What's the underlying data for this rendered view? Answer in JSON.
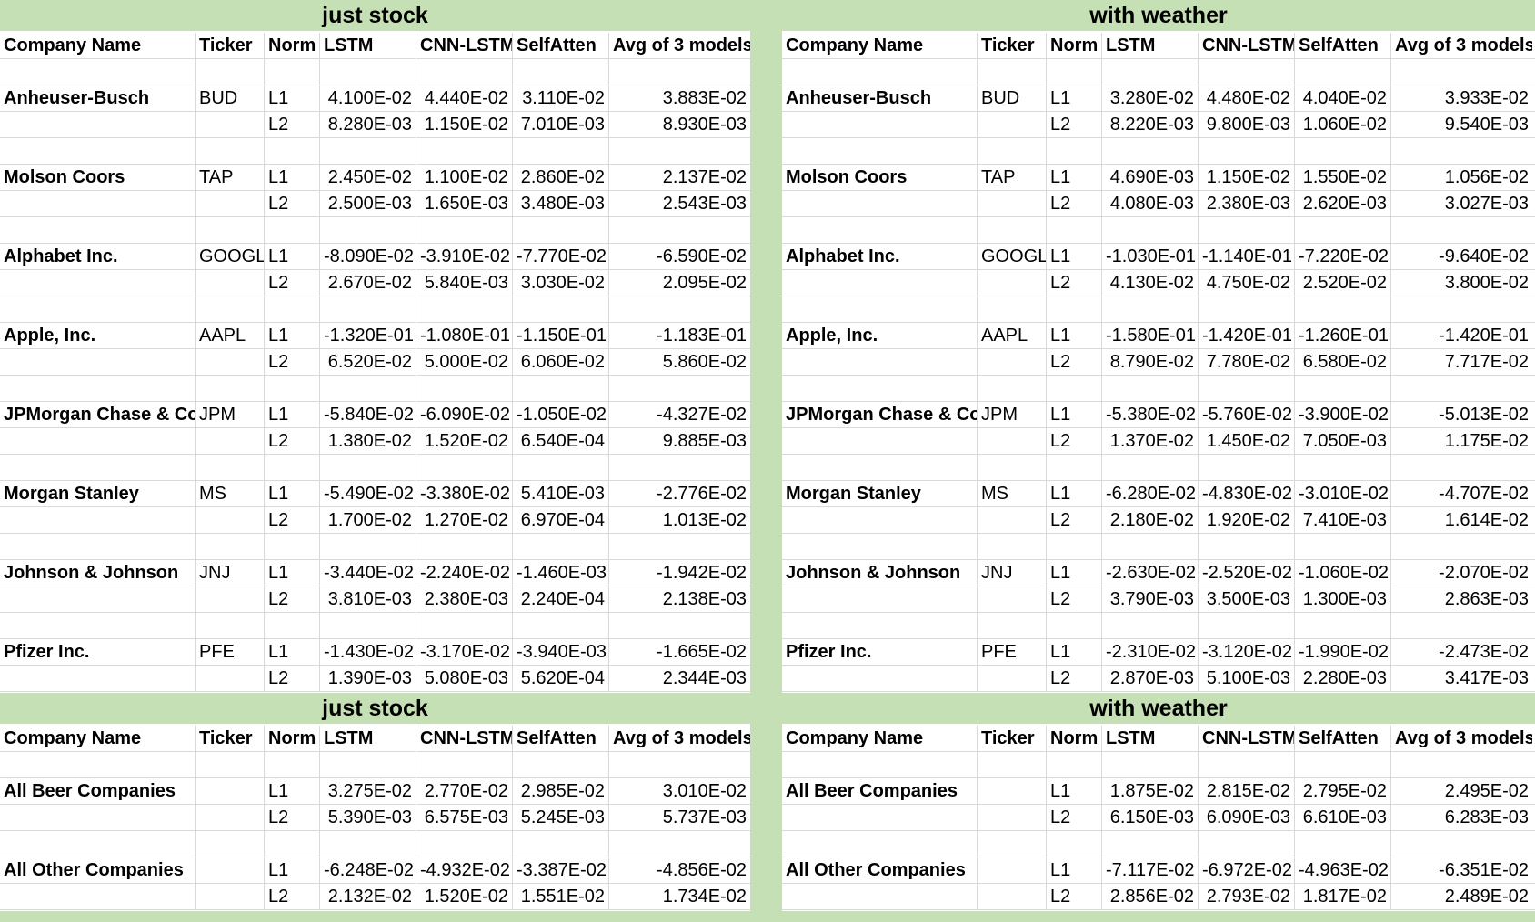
{
  "headers": [
    "Company Name",
    "Ticker",
    "Norm",
    "LSTM",
    "CNN-LSTM",
    "SelfAtten",
    "Avg of 3 models"
  ],
  "panels": [
    {
      "title": "just stock",
      "blocks": [
        {
          "name": "Anheuser-Busch",
          "ticker": "BUD",
          "rows": [
            {
              "norm": "L1",
              "lstm": "4.100E-02",
              "cnn": "4.440E-02",
              "self": "3.110E-02",
              "avg": "3.883E-02"
            },
            {
              "norm": "L2",
              "lstm": "8.280E-03",
              "cnn": "1.150E-02",
              "self": "7.010E-03",
              "avg": "8.930E-03"
            }
          ]
        },
        {
          "name": "Molson Coors",
          "ticker": "TAP",
          "rows": [
            {
              "norm": "L1",
              "lstm": "2.450E-02",
              "cnn": "1.100E-02",
              "self": "2.860E-02",
              "avg": "2.137E-02"
            },
            {
              "norm": "L2",
              "lstm": "2.500E-03",
              "cnn": "1.650E-03",
              "self": "3.480E-03",
              "avg": "2.543E-03"
            }
          ]
        },
        {
          "name": "Alphabet Inc.",
          "ticker": "GOOGL",
          "rows": [
            {
              "norm": "L1",
              "lstm": "-8.090E-02",
              "cnn": "-3.910E-02",
              "self": "-7.770E-02",
              "avg": "-6.590E-02"
            },
            {
              "norm": "L2",
              "lstm": "2.670E-02",
              "cnn": "5.840E-03",
              "self": "3.030E-02",
              "avg": "2.095E-02"
            }
          ]
        },
        {
          "name": "Apple, Inc.",
          "ticker": "AAPL",
          "rows": [
            {
              "norm": "L1",
              "lstm": "-1.320E-01",
              "cnn": "-1.080E-01",
              "self": "-1.150E-01",
              "avg": "-1.183E-01"
            },
            {
              "norm": "L2",
              "lstm": "6.520E-02",
              "cnn": "5.000E-02",
              "self": "6.060E-02",
              "avg": "5.860E-02"
            }
          ]
        },
        {
          "name": "JPMorgan Chase & Co.",
          "ticker": "JPM",
          "rows": [
            {
              "norm": "L1",
              "lstm": "-5.840E-02",
              "cnn": "-6.090E-02",
              "self": "-1.050E-02",
              "avg": "-4.327E-02"
            },
            {
              "norm": "L2",
              "lstm": "1.380E-02",
              "cnn": "1.520E-02",
              "self": "6.540E-04",
              "avg": "9.885E-03"
            }
          ]
        },
        {
          "name": "Morgan Stanley",
          "ticker": "MS",
          "rows": [
            {
              "norm": "L1",
              "lstm": "-5.490E-02",
              "cnn": "-3.380E-02",
              "self": "5.410E-03",
              "avg": "-2.776E-02"
            },
            {
              "norm": "L2",
              "lstm": "1.700E-02",
              "cnn": "1.270E-02",
              "self": "6.970E-04",
              "avg": "1.013E-02"
            }
          ]
        },
        {
          "name": "Johnson & Johnson",
          "ticker": "JNJ",
          "rows": [
            {
              "norm": "L1",
              "lstm": "-3.440E-02",
              "cnn": "-2.240E-02",
              "self": "-1.460E-03",
              "avg": "-1.942E-02"
            },
            {
              "norm": "L2",
              "lstm": "3.810E-03",
              "cnn": "2.380E-03",
              "self": "2.240E-04",
              "avg": "2.138E-03"
            }
          ]
        },
        {
          "name": "Pfizer Inc.",
          "ticker": "PFE",
          "rows": [
            {
              "norm": "L1",
              "lstm": "-1.430E-02",
              "cnn": "-3.170E-02",
              "self": "-3.940E-03",
              "avg": "-1.665E-02"
            },
            {
              "norm": "L2",
              "lstm": "1.390E-03",
              "cnn": "5.080E-03",
              "self": "5.620E-04",
              "avg": "2.344E-03"
            }
          ]
        }
      ]
    },
    {
      "title": "with weather",
      "blocks": [
        {
          "name": "Anheuser-Busch",
          "ticker": "BUD",
          "rows": [
            {
              "norm": "L1",
              "lstm": "3.280E-02",
              "cnn": "4.480E-02",
              "self": "4.040E-02",
              "avg": "3.933E-02"
            },
            {
              "norm": "L2",
              "lstm": "8.220E-03",
              "cnn": "9.800E-03",
              "self": "1.060E-02",
              "avg": "9.540E-03"
            }
          ]
        },
        {
          "name": "Molson Coors",
          "ticker": "TAP",
          "rows": [
            {
              "norm": "L1",
              "lstm": "4.690E-03",
              "cnn": "1.150E-02",
              "self": "1.550E-02",
              "avg": "1.056E-02"
            },
            {
              "norm": "L2",
              "lstm": "4.080E-03",
              "cnn": "2.380E-03",
              "self": "2.620E-03",
              "avg": "3.027E-03"
            }
          ]
        },
        {
          "name": "Alphabet Inc.",
          "ticker": "GOOGL",
          "rows": [
            {
              "norm": "L1",
              "lstm": "-1.030E-01",
              "cnn": "-1.140E-01",
              "self": "-7.220E-02",
              "avg": "-9.640E-02"
            },
            {
              "norm": "L2",
              "lstm": "4.130E-02",
              "cnn": "4.750E-02",
              "self": "2.520E-02",
              "avg": "3.800E-02"
            }
          ]
        },
        {
          "name": "Apple, Inc.",
          "ticker": "AAPL",
          "rows": [
            {
              "norm": "L1",
              "lstm": "-1.580E-01",
              "cnn": "-1.420E-01",
              "self": "-1.260E-01",
              "avg": "-1.420E-01"
            },
            {
              "norm": "L2",
              "lstm": "8.790E-02",
              "cnn": "7.780E-02",
              "self": "6.580E-02",
              "avg": "7.717E-02"
            }
          ]
        },
        {
          "name": "JPMorgan Chase & Co.",
          "ticker": "JPM",
          "rows": [
            {
              "norm": "L1",
              "lstm": "-5.380E-02",
              "cnn": "-5.760E-02",
              "self": "-3.900E-02",
              "avg": "-5.013E-02"
            },
            {
              "norm": "L2",
              "lstm": "1.370E-02",
              "cnn": "1.450E-02",
              "self": "7.050E-03",
              "avg": "1.175E-02"
            }
          ]
        },
        {
          "name": "Morgan Stanley",
          "ticker": "MS",
          "rows": [
            {
              "norm": "L1",
              "lstm": "-6.280E-02",
              "cnn": "-4.830E-02",
              "self": "-3.010E-02",
              "avg": "-4.707E-02"
            },
            {
              "norm": "L2",
              "lstm": "2.180E-02",
              "cnn": "1.920E-02",
              "self": "7.410E-03",
              "avg": "1.614E-02"
            }
          ]
        },
        {
          "name": "Johnson & Johnson",
          "ticker": "JNJ",
          "rows": [
            {
              "norm": "L1",
              "lstm": "-2.630E-02",
              "cnn": "-2.520E-02",
              "self": "-1.060E-02",
              "avg": "-2.070E-02"
            },
            {
              "norm": "L2",
              "lstm": "3.790E-03",
              "cnn": "3.500E-03",
              "self": "1.300E-03",
              "avg": "2.863E-03"
            }
          ]
        },
        {
          "name": "Pfizer Inc.",
          "ticker": "PFE",
          "rows": [
            {
              "norm": "L1",
              "lstm": "-2.310E-02",
              "cnn": "-3.120E-02",
              "self": "-1.990E-02",
              "avg": "-2.473E-02"
            },
            {
              "norm": "L2",
              "lstm": "2.870E-03",
              "cnn": "5.100E-03",
              "self": "2.280E-03",
              "avg": "3.417E-03"
            }
          ]
        }
      ]
    },
    {
      "title": "just stock",
      "blocks": [
        {
          "name": "All Beer Companies",
          "ticker": "",
          "rows": [
            {
              "norm": "L1",
              "lstm": "3.275E-02",
              "cnn": "2.770E-02",
              "self": "2.985E-02",
              "avg": "3.010E-02"
            },
            {
              "norm": "L2",
              "lstm": "5.390E-03",
              "cnn": "6.575E-03",
              "self": "5.245E-03",
              "avg": "5.737E-03"
            }
          ]
        },
        {
          "name": "All Other Companies",
          "ticker": "",
          "rows": [
            {
              "norm": "L1",
              "lstm": "-6.248E-02",
              "cnn": "-4.932E-02",
              "self": "-3.387E-02",
              "avg": "-4.856E-02"
            },
            {
              "norm": "L2",
              "lstm": "2.132E-02",
              "cnn": "1.520E-02",
              "self": "1.551E-02",
              "avg": "1.734E-02"
            }
          ]
        }
      ]
    },
    {
      "title": "with weather",
      "blocks": [
        {
          "name": "All Beer Companies",
          "ticker": "",
          "rows": [
            {
              "norm": "L1",
              "lstm": "1.875E-02",
              "cnn": "2.815E-02",
              "self": "2.795E-02",
              "avg": "2.495E-02"
            },
            {
              "norm": "L2",
              "lstm": "6.150E-03",
              "cnn": "6.090E-03",
              "self": "6.610E-03",
              "avg": "6.283E-03"
            }
          ]
        },
        {
          "name": "All Other Companies",
          "ticker": "",
          "rows": [
            {
              "norm": "L1",
              "lstm": "-7.117E-02",
              "cnn": "-6.972E-02",
              "self": "-4.963E-02",
              "avg": "-6.351E-02"
            },
            {
              "norm": "L2",
              "lstm": "2.856E-02",
              "cnn": "2.793E-02",
              "self": "1.817E-02",
              "avg": "2.489E-02"
            }
          ]
        }
      ]
    }
  ]
}
